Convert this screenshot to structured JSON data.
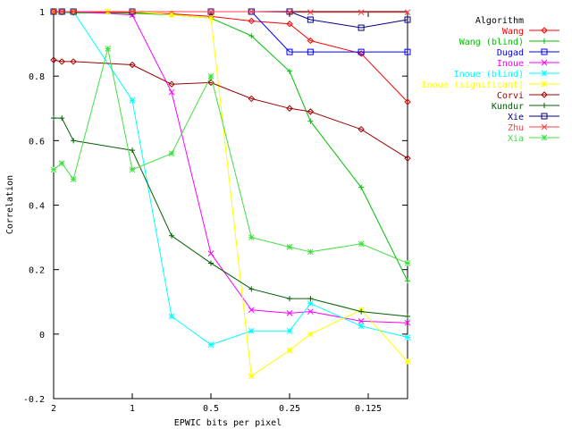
{
  "chart_data": {
    "type": "line",
    "xlabel": "EPWIC bits per pixel",
    "ylabel": "Correlation",
    "x_scale": "log2-reversed",
    "xlim": [
      2,
      0.0884
    ],
    "ylim": [
      -0.2,
      1
    ],
    "x_ticks": [
      {
        "value": 2,
        "label": "2"
      },
      {
        "value": 1,
        "label": "1"
      },
      {
        "value": 0.5,
        "label": "0.5"
      },
      {
        "value": 0.25,
        "label": "0.25"
      },
      {
        "value": 0.125,
        "label": "0.125"
      }
    ],
    "y_ticks": [
      {
        "value": 1,
        "label": "1"
      },
      {
        "value": 0.8,
        "label": "0.8"
      },
      {
        "value": 0.6,
        "label": "0.6"
      },
      {
        "value": 0.4,
        "label": "0.4"
      },
      {
        "value": 0.2,
        "label": "0.2"
      },
      {
        "value": 0,
        "label": "0"
      },
      {
        "value": -0.2,
        "label": "-0.2"
      }
    ],
    "legend_title": "Algorithm",
    "legend_position": "outside-right",
    "grid": false,
    "series": [
      {
        "name": "Wang",
        "color": "#ff0000",
        "marker": "diamond",
        "x": [
          2,
          1.86,
          1.68,
          1.0,
          0.707,
          0.5,
          0.35,
          0.25,
          0.208,
          0.133,
          0.0884
        ],
        "y": [
          1.0,
          0.999,
          0.998,
          0.997,
          0.993,
          0.985,
          0.971,
          0.962,
          0.91,
          0.87,
          0.72
        ]
      },
      {
        "name": "Wang (blind)",
        "color": "#00c000",
        "marker": "plus",
        "x": [
          2,
          1.86,
          1.68,
          1.0,
          0.707,
          0.5,
          0.35,
          0.25,
          0.208,
          0.133,
          0.0884
        ],
        "y": [
          1.0,
          0.998,
          0.996,
          0.995,
          0.99,
          0.98,
          0.925,
          0.815,
          0.66,
          0.455,
          0.165
        ]
      },
      {
        "name": "Dugad",
        "color": "#0000ff",
        "marker": "square",
        "x": [
          2,
          1.86,
          1.68,
          1.0,
          0.5,
          0.35,
          0.25,
          0.208,
          0.133,
          0.0884
        ],
        "y": [
          1.0,
          1.0,
          1.0,
          1.0,
          1.0,
          1.0,
          0.875,
          0.875,
          0.875,
          0.875
        ]
      },
      {
        "name": "Inoue",
        "color": "#ff00ff",
        "marker": "cross",
        "x": [
          2,
          1.86,
          1.68,
          1.0,
          0.707,
          0.5,
          0.35,
          0.25,
          0.208,
          0.133,
          0.0884
        ],
        "y": [
          1.0,
          1.0,
          1.0,
          0.99,
          0.75,
          0.25,
          0.075,
          0.065,
          0.07,
          0.04,
          0.035
        ]
      },
      {
        "name": "Inoue (blind)",
        "color": "#00ffff",
        "marker": "star",
        "x": [
          2,
          1.86,
          1.68,
          1.0,
          0.707,
          0.5,
          0.35,
          0.25,
          0.208,
          0.133,
          0.0884
        ],
        "y": [
          1.0,
          1.0,
          1.0,
          0.725,
          0.055,
          -0.033,
          0.01,
          0.01,
          0.095,
          0.025,
          -0.01
        ]
      },
      {
        "name": "Inoue (significant)",
        "color": "#ffff00",
        "marker": "star",
        "x": [
          2,
          1.86,
          1.68,
          1.24,
          1.0,
          0.707,
          0.5,
          0.35,
          0.25,
          0.208,
          0.133,
          0.0884
        ],
        "y": [
          1.0,
          1.0,
          1.0,
          1.0,
          1.0,
          0.99,
          0.98,
          -0.13,
          -0.05,
          0.0,
          0.075,
          -0.085
        ]
      },
      {
        "name": "Corvi",
        "color": "#a00000",
        "marker": "diamond",
        "x": [
          2,
          1.86,
          1.68,
          1.0,
          0.707,
          0.5,
          0.35,
          0.25,
          0.208,
          0.133,
          0.0884
        ],
        "y": [
          0.85,
          0.845,
          0.845,
          0.835,
          0.775,
          0.78,
          0.73,
          0.7,
          0.69,
          0.635,
          0.545
        ]
      },
      {
        "name": "Kundur",
        "color": "#006000",
        "marker": "plus",
        "x": [
          2,
          1.86,
          1.68,
          1.0,
          0.707,
          0.5,
          0.35,
          0.25,
          0.208,
          0.133,
          0.0884
        ],
        "y": [
          0.67,
          0.67,
          0.6,
          0.57,
          0.305,
          0.22,
          0.14,
          0.11,
          0.11,
          0.07,
          0.055
        ]
      },
      {
        "name": "Xie",
        "color": "#000080",
        "marker": "square",
        "x": [
          2,
          1.86,
          1.68,
          1.0,
          0.5,
          0.35,
          0.25,
          0.208,
          0.133,
          0.0884
        ],
        "y": [
          1.0,
          1.0,
          1.0,
          1.0,
          1.0,
          1.0,
          1.0,
          0.975,
          0.95,
          0.975
        ]
      },
      {
        "name": "Zhu",
        "color": "#ff4040",
        "marker": "cross",
        "x": [
          2,
          1.86,
          1.68,
          1.0,
          0.5,
          0.35,
          0.25,
          0.208,
          0.133,
          0.0884
        ],
        "y": [
          1.0,
          1.0,
          1.0,
          1.0,
          1.0,
          1.0,
          0.998,
          0.998,
          0.998,
          0.998
        ]
      },
      {
        "name": "Xia",
        "color": "#40e040",
        "marker": "star",
        "x": [
          2,
          1.86,
          1.68,
          1.24,
          1.0,
          0.707,
          0.5,
          0.35,
          0.25,
          0.208,
          0.133,
          0.0884
        ],
        "y": [
          0.51,
          0.53,
          0.48,
          0.885,
          0.51,
          0.56,
          0.8,
          0.3,
          0.27,
          0.255,
          0.28,
          0.22
        ]
      }
    ]
  }
}
